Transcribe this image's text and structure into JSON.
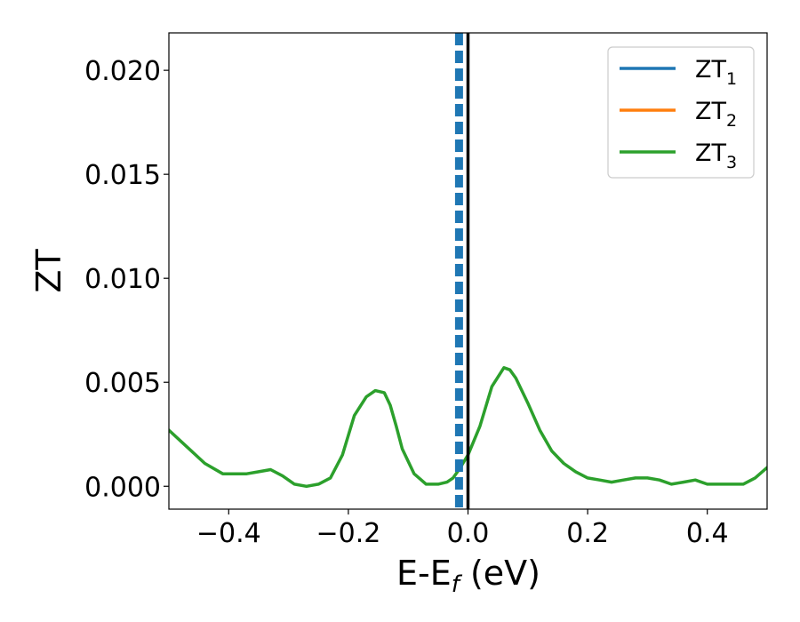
{
  "chart_data": {
    "type": "line",
    "xlabel": {
      "main": "E-E",
      "sub": "f",
      "tail": " (eV)"
    },
    "ylabel": "ZT",
    "xlim": [
      -0.5,
      0.5
    ],
    "ylim": [
      -0.0011,
      0.0218
    ],
    "x_ticks": [
      -0.4,
      -0.2,
      0.0,
      0.2,
      0.4
    ],
    "x_tick_labels": [
      "−0.4",
      "−0.2",
      "0.0",
      "0.2",
      "0.4"
    ],
    "y_ticks": [
      0.0,
      0.005,
      0.01,
      0.015,
      0.02
    ],
    "y_tick_labels": [
      "0.000",
      "0.005",
      "0.010",
      "0.015",
      "0.020"
    ],
    "grid": false,
    "legend_position": "upper-right",
    "series": [
      {
        "name": "ZT",
        "subscript": "1",
        "color": "#1f77b4",
        "x": [],
        "y": []
      },
      {
        "name": "ZT",
        "subscript": "2",
        "color": "#ff7f0e",
        "x": [],
        "y": []
      },
      {
        "name": "ZT",
        "subscript": "3",
        "color": "#2ca02c",
        "x": [
          -0.5,
          -0.47,
          -0.44,
          -0.41,
          -0.39,
          -0.37,
          -0.35,
          -0.33,
          -0.31,
          -0.29,
          -0.27,
          -0.25,
          -0.23,
          -0.21,
          -0.19,
          -0.17,
          -0.155,
          -0.14,
          -0.13,
          -0.12,
          -0.11,
          -0.09,
          -0.07,
          -0.05,
          -0.035,
          -0.025,
          -0.015,
          0.0,
          0.02,
          0.04,
          0.06,
          0.07,
          0.08,
          0.1,
          0.12,
          0.14,
          0.16,
          0.18,
          0.2,
          0.22,
          0.24,
          0.26,
          0.28,
          0.3,
          0.32,
          0.34,
          0.36,
          0.38,
          0.4,
          0.42,
          0.44,
          0.46,
          0.48,
          0.5
        ],
        "y": [
          0.0027,
          0.0019,
          0.0011,
          0.0006,
          0.0006,
          0.0006,
          0.0007,
          0.0008,
          0.0005,
          0.0001,
          0.0,
          0.0001,
          0.0004,
          0.0015,
          0.0034,
          0.0043,
          0.0046,
          0.0045,
          0.0039,
          0.0029,
          0.0018,
          0.0006,
          0.0001,
          0.0001,
          0.0002,
          0.0004,
          0.0008,
          0.0015,
          0.0029,
          0.0048,
          0.0057,
          0.0056,
          0.0052,
          0.004,
          0.0027,
          0.0017,
          0.0011,
          0.0007,
          0.0004,
          0.0003,
          0.0002,
          0.0003,
          0.0004,
          0.0004,
          0.0003,
          0.0001,
          0.0002,
          0.0003,
          0.0001,
          0.0001,
          0.0001,
          0.0001,
          0.0004,
          0.0009
        ]
      }
    ],
    "vertical_lines": [
      {
        "x": -0.015,
        "style": "dashed",
        "color": "#1f77b4"
      },
      {
        "x": 0.0,
        "style": "solid",
        "color": "#000000"
      }
    ]
  }
}
